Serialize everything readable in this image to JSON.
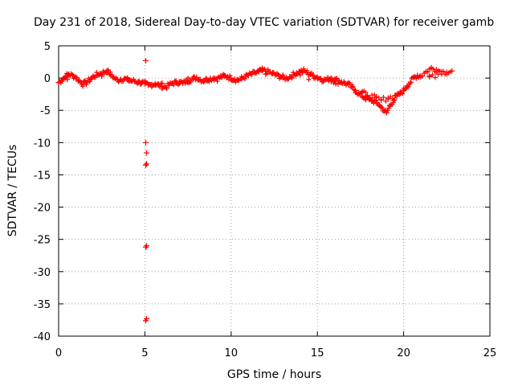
{
  "chart_data": {
    "type": "scatter",
    "title": "Day 231 of 2018, Sidereal Day-to-day VTEC variation (SDTVAR) for receiver gamb",
    "xlabel": "GPS time / hours",
    "ylabel": "SDTVAR / TECUs",
    "xlim": [
      0,
      25
    ],
    "ylim": [
      -40,
      5
    ],
    "xticks": [
      0,
      5,
      10,
      15,
      20,
      25
    ],
    "xtick_labels": [
      "0",
      "5",
      "10",
      "15",
      "20",
      "25"
    ],
    "yticks": [
      5,
      0,
      -5,
      -10,
      -15,
      -20,
      -25,
      -30,
      -35,
      -40
    ],
    "ytick_labels": [
      "5",
      "0",
      "-5",
      "-10",
      "-15",
      "-20",
      "-25",
      "-30",
      "-35",
      "-40"
    ],
    "grid": true,
    "marker": "plus",
    "series": [
      {
        "name": "SDTVAR",
        "color": "#ff0000",
        "points": [
          [
            0.0,
            -0.7
          ],
          [
            0.2,
            -0.3
          ],
          [
            0.4,
            0.3
          ],
          [
            0.6,
            0.6
          ],
          [
            0.8,
            0.4
          ],
          [
            1.0,
            0.1
          ],
          [
            1.2,
            -0.4
          ],
          [
            1.4,
            -0.9
          ],
          [
            1.6,
            -0.7
          ],
          [
            1.8,
            -0.3
          ],
          [
            2.0,
            0.2
          ],
          [
            2.2,
            0.5
          ],
          [
            2.4,
            0.7
          ],
          [
            2.6,
            0.9
          ],
          [
            2.8,
            1.1
          ],
          [
            3.0,
            0.6
          ],
          [
            3.2,
            0.1
          ],
          [
            3.4,
            -0.3
          ],
          [
            3.6,
            -0.2
          ],
          [
            3.8,
            -0.1
          ],
          [
            4.0,
            -0.3
          ],
          [
            4.2,
            -0.4
          ],
          [
            4.4,
            -0.5
          ],
          [
            4.6,
            -0.6
          ],
          [
            4.8,
            -0.7
          ],
          [
            5.0,
            -0.9
          ],
          [
            5.2,
            -1.1
          ],
          [
            5.4,
            -1.0
          ],
          [
            5.6,
            -0.9
          ],
          [
            5.8,
            -1.1
          ],
          [
            6.0,
            -1.3
          ],
          [
            6.2,
            -1.4
          ],
          [
            6.4,
            -1.1
          ],
          [
            6.6,
            -0.8
          ],
          [
            6.8,
            -0.7
          ],
          [
            7.0,
            -0.6
          ],
          [
            7.2,
            -0.8
          ],
          [
            7.4,
            -0.5
          ],
          [
            7.6,
            -0.3
          ],
          [
            7.8,
            -0.1
          ],
          [
            8.0,
            0.1
          ],
          [
            8.2,
            -0.2
          ],
          [
            8.4,
            -0.4
          ],
          [
            8.6,
            -0.2
          ],
          [
            8.8,
            -0.1
          ],
          [
            9.0,
            0.0
          ],
          [
            9.2,
            -0.1
          ],
          [
            9.4,
            0.2
          ],
          [
            9.6,
            0.3
          ],
          [
            9.8,
            0.2
          ],
          [
            10.0,
            0.0
          ],
          [
            10.2,
            -0.2
          ],
          [
            10.4,
            -0.3
          ],
          [
            10.6,
            -0.1
          ],
          [
            10.8,
            0.2
          ],
          [
            11.0,
            0.4
          ],
          [
            11.2,
            0.6
          ],
          [
            11.4,
            0.8
          ],
          [
            11.6,
            1.0
          ],
          [
            11.8,
            1.2
          ],
          [
            12.0,
            1.1
          ],
          [
            12.2,
            0.9
          ],
          [
            12.4,
            0.7
          ],
          [
            12.6,
            0.5
          ],
          [
            12.8,
            0.3
          ],
          [
            13.0,
            0.1
          ],
          [
            13.2,
            0.0
          ],
          [
            13.4,
            0.2
          ],
          [
            13.6,
            0.5
          ],
          [
            13.8,
            0.8
          ],
          [
            14.0,
            1.0
          ],
          [
            14.2,
            1.1
          ],
          [
            14.4,
            0.9
          ],
          [
            14.6,
            0.6
          ],
          [
            14.8,
            0.3
          ],
          [
            15.0,
            0.1
          ],
          [
            15.2,
            -0.1
          ],
          [
            15.4,
            -0.3
          ],
          [
            15.6,
            -0.2
          ],
          [
            15.8,
            0.0
          ],
          [
            16.0,
            -0.2
          ],
          [
            16.2,
            -0.4
          ],
          [
            16.4,
            -0.6
          ],
          [
            16.6,
            -0.8
          ],
          [
            16.8,
            -1.0
          ],
          [
            17.0,
            -1.4
          ],
          [
            17.2,
            -1.9
          ],
          [
            17.4,
            -2.4
          ],
          [
            17.6,
            -2.8
          ],
          [
            17.8,
            -3.1
          ],
          [
            18.0,
            -3.3
          ],
          [
            18.2,
            -3.5
          ],
          [
            18.4,
            -3.8
          ],
          [
            18.6,
            -4.2
          ],
          [
            18.8,
            -4.8
          ],
          [
            19.0,
            -5.4
          ],
          [
            19.2,
            -4.3
          ],
          [
            19.4,
            -3.5
          ],
          [
            19.6,
            -2.8
          ],
          [
            19.8,
            -2.4
          ],
          [
            20.0,
            -1.9
          ],
          [
            20.2,
            -1.2
          ],
          [
            20.4,
            -0.6
          ],
          [
            20.6,
            0.1
          ],
          [
            20.8,
            0.4
          ],
          [
            21.0,
            0.3
          ],
          [
            21.3,
            1.0
          ],
          [
            21.6,
            1.5
          ],
          [
            21.9,
            1.3
          ],
          [
            22.2,
            1.0
          ],
          [
            22.5,
            0.9
          ],
          [
            22.8,
            1.1
          ],
          [
            17.6,
            -2.2
          ],
          [
            17.9,
            -2.7
          ],
          [
            18.3,
            -3.0
          ],
          [
            18.7,
            -3.4
          ],
          [
            19.1,
            -3.1
          ],
          [
            19.5,
            -2.7
          ],
          [
            15.8,
            -0.5
          ],
          [
            16.2,
            -0.9
          ],
          [
            14.0,
            0.5
          ],
          [
            12.0,
            0.6
          ],
          [
            6.0,
            -0.8
          ],
          [
            4.0,
            0.0
          ],
          [
            2.5,
            0.3
          ],
          [
            0.5,
            -0.2
          ],
          [
            21.5,
            0.2
          ],
          [
            22.0,
            0.6
          ],
          [
            5.05,
            2.7
          ],
          [
            5.05,
            -10.0
          ],
          [
            5.1,
            -11.6
          ],
          [
            5.1,
            -13.3
          ],
          [
            5.05,
            -13.5
          ],
          [
            5.1,
            -26.0
          ],
          [
            5.05,
            -26.2
          ],
          [
            5.1,
            -37.3
          ],
          [
            5.05,
            -37.6
          ]
        ]
      }
    ]
  }
}
